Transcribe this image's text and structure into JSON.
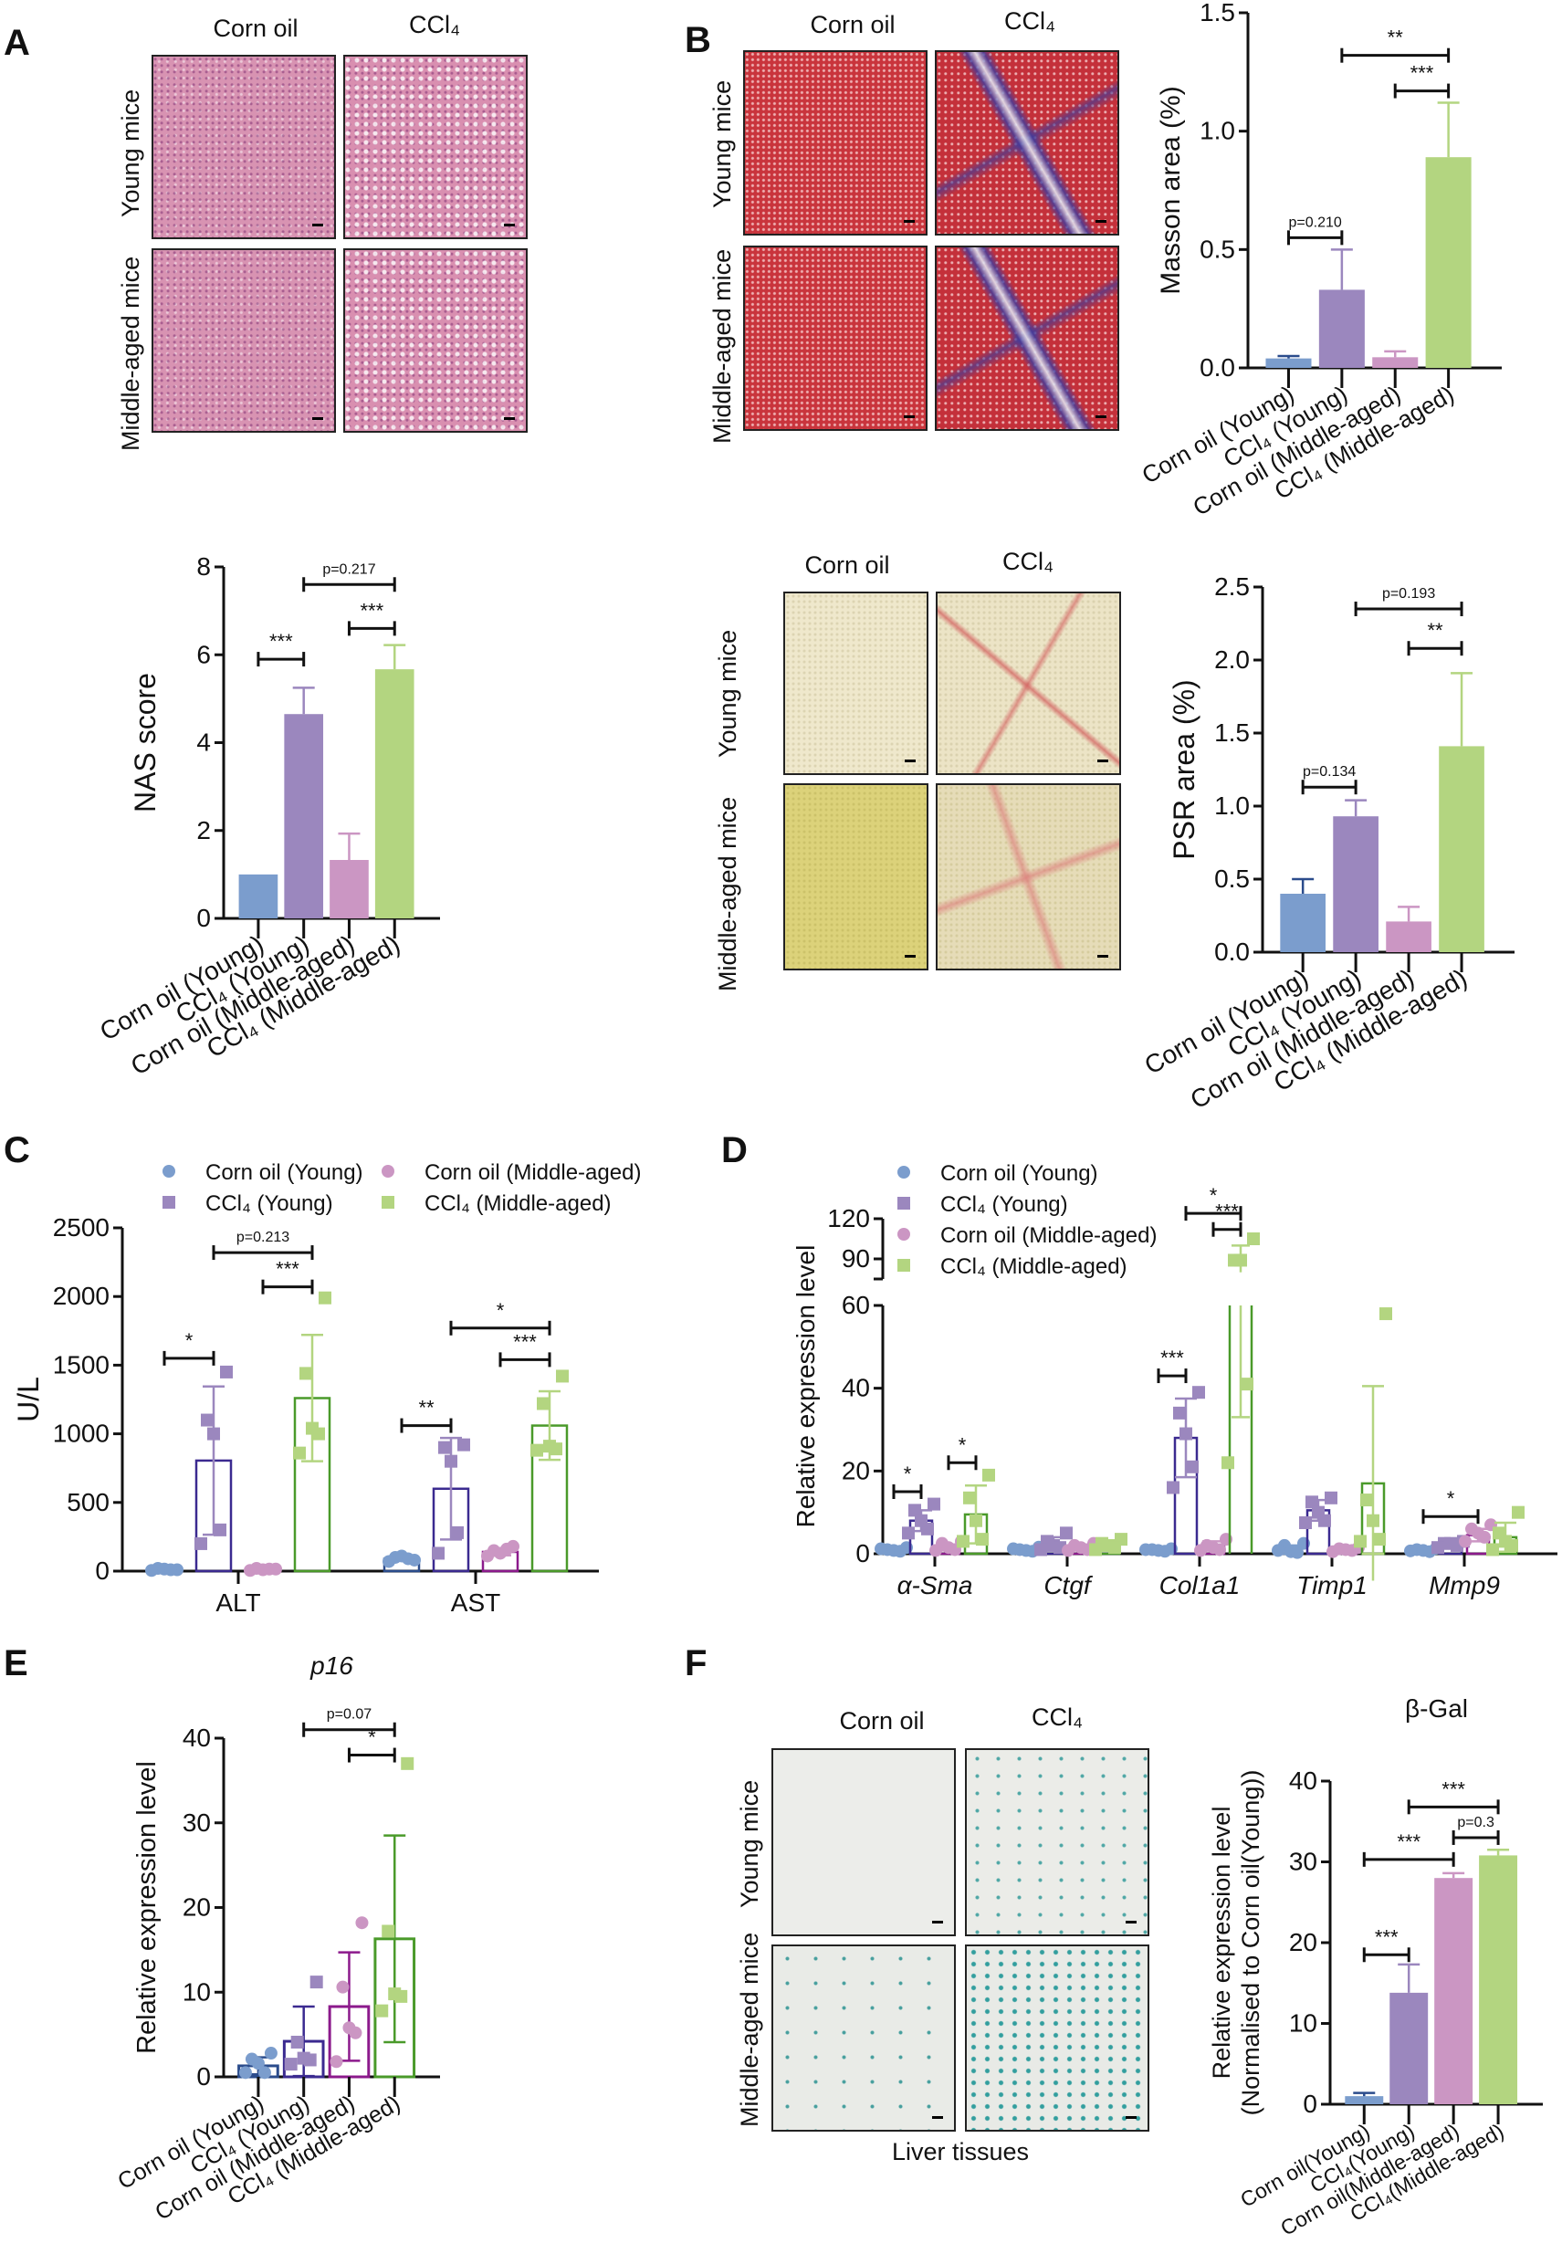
{
  "panels": {
    "a": "A",
    "b": "B",
    "c": "C",
    "d": "D",
    "e": "E",
    "f": "F"
  },
  "histology": {
    "corn_oil": "Corn oil",
    "ccl4": "CCl₄",
    "young": "Young mice",
    "middle": "Middle-aged mice",
    "liver_tissues": "Liver tissues"
  },
  "colors": {
    "corn_young": "#7b9dcd",
    "ccl4_young": "#9b87be",
    "corn_middle": "#cb96c3",
    "ccl4_middle": "#b3d580",
    "corn_young_line": "#2b4c8c",
    "ccl4_young_line": "#3b2a90",
    "corn_middle_line": "#8c1a8c",
    "ccl4_middle_line": "#4a9a2a"
  },
  "chart_data": [
    {
      "id": "masson",
      "type": "bar",
      "ylabel": "Masson area (%)",
      "ylim": [
        0,
        1.5
      ],
      "yticks": [
        0,
        0.5,
        1.0,
        1.5
      ],
      "ytick_labels": [
        "0.0",
        "0.5",
        "1.0",
        "1.5"
      ],
      "categories": [
        "Corn oil (Young)",
        "CCl₄ (Young)",
        "Corn oil (Middle-aged)",
        "CCl₄ (Middle-aged)"
      ],
      "values": [
        0.04,
        0.33,
        0.045,
        0.89
      ],
      "errors": [
        0.01,
        0.17,
        0.025,
        0.23
      ],
      "significance": [
        {
          "a": 0,
          "b": 1,
          "y": 0.55,
          "label": "p=0.210"
        },
        {
          "a": 1,
          "b": 3,
          "y": 1.32,
          "label": "**"
        },
        {
          "a": 2,
          "b": 3,
          "y": 1.17,
          "label": "***"
        }
      ]
    },
    {
      "id": "nas",
      "type": "bar",
      "ylabel": "NAS score",
      "ylim": [
        0,
        8
      ],
      "yticks": [
        0,
        2,
        4,
        6,
        8
      ],
      "ytick_labels": [
        "0",
        "2",
        "4",
        "6",
        "8"
      ],
      "categories": [
        "Corn oil (Young)",
        "CCl₄ (Young)",
        "Corn oil (Middle-aged)",
        "CCl₄ (Middle-aged)"
      ],
      "values": [
        1.0,
        4.65,
        1.33,
        5.67
      ],
      "errors": [
        0,
        0.6,
        0.6,
        0.55
      ],
      "significance": [
        {
          "a": 0,
          "b": 1,
          "y": 5.9,
          "label": "***"
        },
        {
          "a": 1,
          "b": 3,
          "y": 7.6,
          "label": "p=0.217"
        },
        {
          "a": 2,
          "b": 3,
          "y": 6.6,
          "label": "***"
        }
      ]
    },
    {
      "id": "psr",
      "type": "bar",
      "ylabel": "PSR area (%)",
      "ylim": [
        0,
        2.5
      ],
      "yticks": [
        0,
        0.5,
        1.0,
        1.5,
        2.0,
        2.5
      ],
      "ytick_labels": [
        "0.0",
        "0.5",
        "1.0",
        "1.5",
        "2.0",
        "2.5"
      ],
      "categories": [
        "Corn oil (Young)",
        "CCl₄ (Young)",
        "Corn oil (Middle-aged)",
        "CCl₄ (Middle-aged)"
      ],
      "values": [
        0.4,
        0.93,
        0.21,
        1.41
      ],
      "errors": [
        0.1,
        0.11,
        0.1,
        0.5
      ],
      "significance": [
        {
          "a": 0,
          "b": 1,
          "y": 1.13,
          "label": "p=0.134"
        },
        {
          "a": 1,
          "b": 3,
          "y": 2.35,
          "label": "p=0.193"
        },
        {
          "a": 2,
          "b": 3,
          "y": 2.08,
          "label": "**"
        }
      ]
    },
    {
      "id": "c",
      "type": "bar",
      "ylabel": "U/L",
      "ylim": [
        0,
        2500
      ],
      "yticks": [
        0,
        500,
        1000,
        1500,
        2000,
        2500
      ],
      "ytick_labels": [
        "0",
        "500",
        "1000",
        "1500",
        "2000",
        "2500"
      ],
      "categories": [
        "ALT",
        "AST"
      ],
      "legend": "top",
      "series": [
        {
          "name": "Corn oil (Young)",
          "values": [
            12,
            90
          ],
          "errors": [
            6,
            15
          ],
          "points": [
            [
              10,
              20,
              15,
              10,
              5
            ],
            [
              80,
              100,
              110,
              90,
              70
            ]
          ]
        },
        {
          "name": "CCl₄ (Young)",
          "values": [
            805,
            600
          ],
          "errors": [
            540,
            370
          ],
          "points": [
            [
              1450,
              1100,
              1000,
              300,
              200
            ],
            [
              920,
              900,
              800,
              280,
              130
            ]
          ]
        },
        {
          "name": "Corn oil (Middle-aged)",
          "values": [
            13,
            140
          ],
          "errors": [
            6,
            25
          ],
          "points": [
            [
              15,
              20,
              10,
              15,
              5
            ],
            [
              180,
              150,
              130,
              160,
              110
            ]
          ]
        },
        {
          "name": "CCl₄ (Middle-aged)",
          "values": [
            1260,
            1060
          ],
          "errors": [
            460,
            250
          ],
          "points": [
            [
              1990,
              1440,
              1040,
              1000,
              860
            ],
            [
              1420,
              1220,
              910,
              890,
              880
            ]
          ]
        }
      ],
      "significance": [
        {
          "g": 0,
          "a": 0,
          "b": 1,
          "y": 1550,
          "label": "*"
        },
        {
          "g": 0,
          "a": 1,
          "b": 3,
          "y": 2320,
          "label": "p=0.213"
        },
        {
          "g": 0,
          "a": 2,
          "b": 3,
          "y": 2070,
          "label": "***"
        },
        {
          "g": 1,
          "a": 0,
          "b": 1,
          "y": 1060,
          "label": "**"
        },
        {
          "g": 1,
          "a": 1,
          "b": 3,
          "y": 1770,
          "label": "*"
        },
        {
          "g": 1,
          "a": 2,
          "b": 3,
          "y": 1540,
          "label": "***"
        }
      ]
    },
    {
      "id": "d",
      "type": "bar",
      "ylabel": "Relative expression level",
      "ylim": [
        0,
        120
      ],
      "axis_break": [
        60,
        78
      ],
      "yticks": [
        0,
        20,
        40,
        60,
        90,
        120
      ],
      "ytick_labels": [
        "0",
        "20",
        "40",
        "60",
        "90",
        "120"
      ],
      "categories": [
        "α-Sma",
        "Ctgf",
        "Col1a1",
        "Timp1",
        "Mmp9"
      ],
      "legend": "top-left",
      "series": [
        {
          "name": "Corn oil (Young)",
          "values": [
            1,
            1,
            1,
            1,
            1
          ],
          "errors": [
            0.4,
            0.4,
            0.3,
            1,
            0.4
          ],
          "points": [
            [
              1.5,
              1,
              0.8,
              0.6,
              1.2
            ],
            [
              1.6,
              1,
              0.8,
              0.6,
              1.2
            ],
            [
              1.2,
              1,
              0.8,
              0.6,
              1
            ],
            [
              2.5,
              2,
              0.5,
              0.3,
              0.8
            ],
            [
              1.3,
              1,
              0.8,
              0.5,
              0.7
            ]
          ]
        },
        {
          "name": "CCl₄ (Young)",
          "values": [
            8,
            2.5,
            28,
            10.5,
            2.5
          ],
          "errors": [
            2.5,
            1.5,
            9.5,
            2.5,
            0.8
          ],
          "points": [
            [
              12,
              10.5,
              8,
              6,
              5
            ],
            [
              5,
              3,
              2,
              1.5,
              1
            ],
            [
              39,
              34,
              29,
              21,
              16
            ],
            [
              13.5,
              12.5,
              10,
              8,
              7.5
            ],
            [
              3,
              2.5,
              2.5,
              2,
              1.5
            ]
          ]
        },
        {
          "name": "Corn oil (Middle-aged)",
          "values": [
            1.5,
            1.5,
            2,
            1,
            4.5
          ],
          "errors": [
            0.7,
            0.5,
            1,
            0.5,
            1.5
          ],
          "points": [
            [
              3,
              2.5,
              1.5,
              1,
              0.8
            ],
            [
              2.5,
              2,
              1.5,
              1,
              0.8
            ],
            [
              3.5,
              2,
              1.5,
              1,
              0.8
            ],
            [
              1.5,
              1.2,
              1,
              0.8,
              0.5
            ],
            [
              7,
              6,
              5,
              4,
              3
            ]
          ]
        },
        {
          "name": "CCl₄ (Middle-aged)",
          "values": [
            9.5,
            2,
            66,
            17,
            4
          ],
          "errors": [
            7,
            1,
            33,
            23.5,
            3.5
          ],
          "points": [
            [
              19,
              13.5,
              8,
              3.5,
              3
            ],
            [
              3.5,
              2.5,
              2,
              1.5,
              1
            ],
            [
              105,
              89,
              89,
              41,
              22
            ],
            [
              58,
              13,
              8,
              3.5,
              3
            ],
            [
              10,
              5,
              3,
              2,
              1
            ]
          ]
        }
      ],
      "significance": [
        {
          "g": 0,
          "a": 0,
          "b": 1,
          "y": 15,
          "label": "*"
        },
        {
          "g": 0,
          "a": 2,
          "b": 3,
          "y": 22,
          "label": "*"
        },
        {
          "g": 2,
          "a": 0,
          "b": 1,
          "y": 43,
          "label": "***"
        },
        {
          "g": 2,
          "a": 2,
          "b": 3,
          "y": 112,
          "label": "***"
        },
        {
          "g": 2,
          "a": 1,
          "b": 3,
          "y": 124,
          "label": "*"
        },
        {
          "g": 4,
          "a": 0,
          "b": 2,
          "y": 9,
          "label": "*"
        }
      ]
    },
    {
      "id": "e",
      "type": "bar",
      "title": "p16",
      "ylabel": "Relative expression level",
      "ylim": [
        0,
        40
      ],
      "yticks": [
        0,
        10,
        20,
        30,
        40
      ],
      "ytick_labels": [
        "0",
        "10",
        "20",
        "30",
        "40"
      ],
      "categories": [
        "Corn oil (Young)",
        "CCl₄ (Young)",
        "Corn oil (Middle-aged)",
        "CCl₄ (Middle-aged)"
      ],
      "values": [
        1.3,
        4.2,
        8.3,
        16.3
      ],
      "errors": [
        1,
        4.1,
        6.4,
        12.2
      ],
      "points": [
        [
          2.8,
          2.1,
          1.6,
          0.5,
          0.5
        ],
        [
          11.2,
          4.1,
          2.2,
          2.0,
          1.5
        ],
        [
          18.2,
          10.6,
          5.8,
          5.2,
          1.8
        ],
        [
          37,
          17.2,
          9.8,
          9.5,
          7.8
        ]
      ],
      "significance": [
        {
          "a": 1,
          "b": 3,
          "y": 41,
          "label": "p=0.07"
        },
        {
          "a": 2,
          "b": 3,
          "y": 38,
          "label": "*"
        }
      ]
    },
    {
      "id": "f",
      "type": "bar",
      "title": "β-Gal",
      "ylabel": "Relative expression level",
      "ylabel2": "(Normalised to Corn oil(Young))",
      "ylim": [
        0,
        40
      ],
      "yticks": [
        0,
        10,
        20,
        30,
        40
      ],
      "ytick_labels": [
        "0",
        "10",
        "20",
        "30",
        "40"
      ],
      "categories": [
        "Corn oil(Young)",
        "CCl₄(Young)",
        "Corn oil(Middle-aged)",
        "CCl₄(Middle-aged)"
      ],
      "values": [
        1,
        13.8,
        28,
        30.8
      ],
      "errors": [
        0.4,
        3.5,
        0.6,
        0.7
      ],
      "significance": [
        {
          "a": 0,
          "b": 1,
          "y": 18.5,
          "label": "***"
        },
        {
          "a": 0,
          "b": 2,
          "y": 30.3,
          "label": "***"
        },
        {
          "a": 1,
          "b": 3,
          "y": 36.8,
          "label": "***"
        },
        {
          "a": 2,
          "b": 3,
          "y": 33,
          "label": "p=0.3"
        }
      ]
    }
  ]
}
